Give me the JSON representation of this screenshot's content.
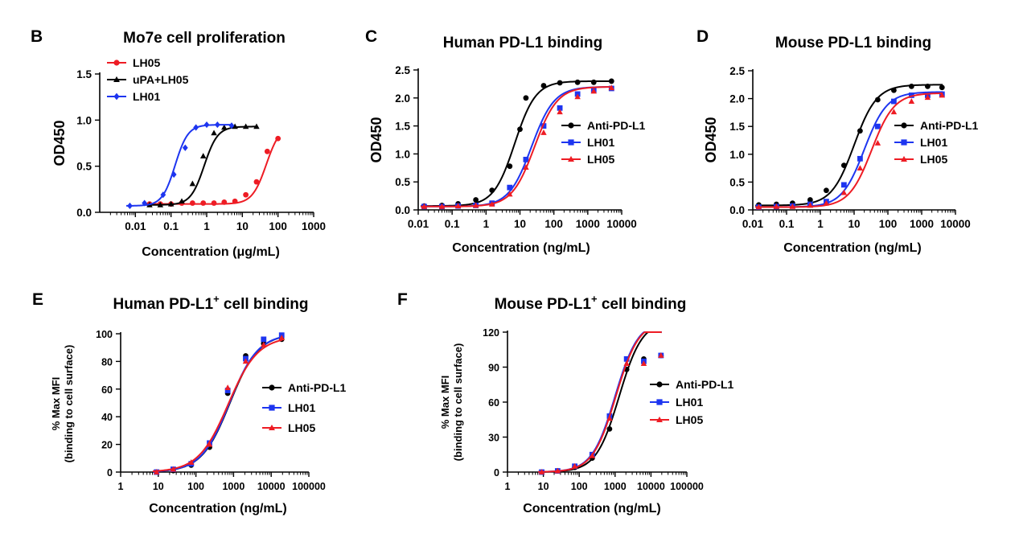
{
  "chart_data": [
    {
      "panel": "B",
      "type": "line",
      "title": "Mo7e cell proliferation",
      "xlabel": "Concentration (μg/mL)",
      "ylabel": "OD450",
      "xscale": "log",
      "xlim": [
        0.001,
        1000
      ],
      "ylim": [
        0,
        1.5
      ],
      "xticks": [
        "0.01",
        "0.1",
        "1",
        "10",
        "100",
        "1000"
      ],
      "yticks": [
        "0.0",
        "0.5",
        "1.0",
        "1.5"
      ],
      "legend_position": "top-left",
      "series": [
        {
          "name": "LH05",
          "color": "#ee1c24",
          "marker": "circle",
          "x": [
            0.025,
            0.05,
            0.1,
            0.2,
            0.4,
            0.8,
            1.6,
            3.1,
            6.2,
            12.5,
            25,
            50,
            100
          ],
          "y": [
            0.09,
            0.09,
            0.09,
            0.1,
            0.1,
            0.1,
            0.1,
            0.11,
            0.12,
            0.19,
            0.33,
            0.66,
            0.8
          ],
          "fit": {
            "bottom": 0.09,
            "top": 0.95,
            "ec50": 47,
            "hill": 2.2
          }
        },
        {
          "name": "uPA+LH05",
          "color": "#000000",
          "marker": "triangle",
          "x": [
            0.025,
            0.05,
            0.1,
            0.2,
            0.4,
            0.8,
            1.6,
            3.1,
            6.2,
            12.5,
            25
          ],
          "y": [
            0.08,
            0.08,
            0.09,
            0.12,
            0.31,
            0.61,
            0.86,
            0.92,
            0.93,
            0.93,
            0.93
          ],
          "fit": {
            "bottom": 0.08,
            "top": 0.93,
            "ec50": 0.85,
            "hill": 2.3
          }
        },
        {
          "name": "LH01",
          "color": "#1d35f0",
          "marker": "diamond",
          "x": [
            0.007,
            0.018,
            0.06,
            0.12,
            0.25,
            0.5,
            1.0,
            2.0,
            5.0
          ],
          "y": [
            0.07,
            0.1,
            0.19,
            0.41,
            0.7,
            0.92,
            0.95,
            0.95,
            0.94
          ],
          "fit": {
            "bottom": 0.07,
            "top": 0.95,
            "ec50": 0.13,
            "hill": 2.4
          }
        }
      ]
    },
    {
      "panel": "C",
      "type": "line",
      "title": "Human PD-L1 binding",
      "xlabel": "Concentration (ng/mL)",
      "ylabel": "OD450",
      "xscale": "log",
      "xlim": [
        0.01,
        10000
      ],
      "ylim": [
        0,
        2.5
      ],
      "xticks": [
        "0.01",
        "0.1",
        "1",
        "10",
        "100",
        "1000",
        "10000"
      ],
      "yticks": [
        "0.0",
        "0.5",
        "1.0",
        "1.5",
        "2.0",
        "2.5"
      ],
      "legend_position": "right",
      "series": [
        {
          "name": "Anti-PD-L1",
          "color": "#000000",
          "marker": "circle",
          "x": [
            0.015,
            0.05,
            0.15,
            0.5,
            1.5,
            5,
            10,
            15,
            50,
            150,
            500,
            1500,
            5000
          ],
          "y": [
            0.07,
            0.08,
            0.11,
            0.18,
            0.35,
            0.78,
            1.44,
            2.0,
            2.22,
            2.27,
            2.28,
            2.28,
            2.3
          ],
          "fit": {
            "bottom": 0.07,
            "top": 2.3,
            "ec50": 7,
            "hill": 1.4
          }
        },
        {
          "name": "LH01",
          "color": "#1d35f0",
          "marker": "square",
          "x": [
            0.015,
            0.05,
            0.15,
            0.5,
            1.5,
            5,
            15,
            50,
            150,
            500,
            1500,
            5000
          ],
          "y": [
            0.06,
            0.06,
            0.07,
            0.08,
            0.12,
            0.4,
            0.9,
            1.5,
            1.82,
            2.07,
            2.14,
            2.17
          ],
          "fit": {
            "bottom": 0.06,
            "top": 2.2,
            "ec50": 22,
            "hill": 1.3
          }
        },
        {
          "name": "LH05",
          "color": "#ee1c24",
          "marker": "triangle",
          "x": [
            0.015,
            0.05,
            0.15,
            0.5,
            1.5,
            5,
            15,
            50,
            150,
            500,
            1500,
            5000
          ],
          "y": [
            0.06,
            0.06,
            0.07,
            0.08,
            0.1,
            0.28,
            0.76,
            1.38,
            1.75,
            2.02,
            2.12,
            2.18
          ],
          "fit": {
            "bottom": 0.06,
            "top": 2.2,
            "ec50": 27,
            "hill": 1.3
          }
        }
      ]
    },
    {
      "panel": "D",
      "type": "line",
      "title": "Mouse PD-L1 binding",
      "xlabel": "Concentration (ng/mL)",
      "ylabel": "OD450",
      "xscale": "log",
      "xlim": [
        0.01,
        10000
      ],
      "ylim": [
        0,
        2.5
      ],
      "xticks": [
        "0.01",
        "0.1",
        "1",
        "10",
        "100",
        "1000",
        "10000"
      ],
      "yticks": [
        "0.0",
        "0.5",
        "1.0",
        "1.5",
        "2.0",
        "2.5"
      ],
      "legend_position": "right",
      "series": [
        {
          "name": "Anti-PD-L1",
          "color": "#000000",
          "marker": "circle",
          "x": [
            0.015,
            0.05,
            0.15,
            0.5,
            1.5,
            5,
            15,
            50,
            150,
            500,
            1500,
            4000
          ],
          "y": [
            0.09,
            0.1,
            0.12,
            0.18,
            0.35,
            0.8,
            1.42,
            1.98,
            2.15,
            2.22,
            2.22,
            2.2
          ],
          "fit": {
            "bottom": 0.08,
            "top": 2.25,
            "ec50": 10,
            "hill": 1.3
          }
        },
        {
          "name": "LH01",
          "color": "#1d35f0",
          "marker": "square",
          "x": [
            0.015,
            0.05,
            0.15,
            0.5,
            1.5,
            5,
            15,
            50,
            150,
            500,
            1500,
            4000
          ],
          "y": [
            0.05,
            0.06,
            0.07,
            0.1,
            0.15,
            0.45,
            0.92,
            1.5,
            1.95,
            2.06,
            2.06,
            2.08
          ],
          "fit": {
            "bottom": 0.05,
            "top": 2.12,
            "ec50": 20,
            "hill": 1.3
          }
        },
        {
          "name": "LH05",
          "color": "#ee1c24",
          "marker": "triangle",
          "x": [
            0.015,
            0.05,
            0.15,
            0.5,
            1.5,
            5,
            15,
            50,
            150,
            500,
            1500,
            4000
          ],
          "y": [
            0.05,
            0.06,
            0.06,
            0.08,
            0.12,
            0.31,
            0.75,
            1.2,
            1.76,
            1.95,
            2.02,
            2.06
          ],
          "fit": {
            "bottom": 0.05,
            "top": 2.1,
            "ec50": 33,
            "hill": 1.3
          }
        }
      ]
    },
    {
      "panel": "E",
      "type": "line",
      "title": "Human PD-L1",
      "title_sup": "+",
      "title_suffix": " cell binding",
      "xlabel": "Concentration (ng/mL)",
      "ylabel_lines": [
        "% Max MFI",
        "(binding to cell surface)"
      ],
      "xscale": "log",
      "xlim": [
        1,
        100000
      ],
      "ylim": [
        0,
        100
      ],
      "xticks": [
        "1",
        "10",
        "100",
        "1000",
        "10000",
        "100000"
      ],
      "yticks": [
        "0",
        "20",
        "40",
        "60",
        "80",
        "100"
      ],
      "legend_position": "right",
      "series": [
        {
          "name": "Anti-PD-L1",
          "color": "#000000",
          "marker": "circle",
          "x": [
            9,
            25,
            75,
            230,
            700,
            2100,
            6300,
            19000
          ],
          "y": [
            0,
            1,
            5,
            18,
            57,
            84,
            93,
            96
          ],
          "fit": {
            "bottom": 0,
            "top": 100,
            "ec50": 800,
            "hill": 1.15
          }
        },
        {
          "name": "LH01",
          "color": "#1d35f0",
          "marker": "square",
          "x": [
            9,
            25,
            75,
            230,
            700,
            2100,
            6300,
            19000
          ],
          "y": [
            0,
            2,
            6,
            21,
            59,
            82,
            96,
            99
          ],
          "fit": {
            "bottom": 0,
            "top": 100,
            "ec50": 780,
            "hill": 1.15
          }
        },
        {
          "name": "LH05",
          "color": "#ee1c24",
          "marker": "triangle",
          "x": [
            9,
            25,
            75,
            230,
            700,
            2100,
            6300,
            19000
          ],
          "y": [
            0,
            2,
            7,
            20,
            61,
            80,
            92,
            97
          ],
          "fit": {
            "bottom": 0,
            "top": 98,
            "ec50": 720,
            "hill": 1.1
          }
        }
      ]
    },
    {
      "panel": "F",
      "type": "line",
      "title": "Mouse PD-L1",
      "title_sup": "+",
      "title_suffix": " cell binding",
      "xlabel": "Concentration (ng/mL)",
      "ylabel_lines": [
        "% Max MFI",
        "(binding to cell surface)"
      ],
      "xscale": "log",
      "xlim": [
        1,
        100000
      ],
      "ylim": [
        0,
        120
      ],
      "xticks": [
        "1",
        "10",
        "100",
        "1000",
        "10000",
        "100000"
      ],
      "yticks": [
        "0",
        "30",
        "60",
        "90",
        "120"
      ],
      "legend_position": "right",
      "series": [
        {
          "name": "Anti-PD-L1",
          "color": "#000000",
          "marker": "circle",
          "x": [
            9,
            25,
            75,
            230,
            700,
            2100,
            6300,
            19000
          ],
          "y": [
            0,
            1,
            4,
            12,
            37,
            88,
            97,
            100
          ],
          "fit": {
            "bottom": 0,
            "top": 130,
            "ec50": 1300,
            "hill": 1.35,
            "fall": true
          }
        },
        {
          "name": "LH01",
          "color": "#1d35f0",
          "marker": "square",
          "x": [
            9,
            25,
            75,
            230,
            700,
            2100,
            6300,
            19000
          ],
          "y": [
            0,
            1,
            5,
            15,
            48,
            97,
            95,
            100
          ],
          "fit": {
            "bottom": 0,
            "top": 130,
            "ec50": 1000,
            "hill": 1.35,
            "fall": true
          }
        },
        {
          "name": "LH05",
          "color": "#ee1c24",
          "marker": "triangle",
          "x": [
            9,
            25,
            75,
            230,
            700,
            2100,
            6300,
            19000
          ],
          "y": [
            0,
            1,
            5,
            14,
            46,
            93,
            93,
            100
          ],
          "fit": {
            "bottom": 0,
            "top": 130,
            "ec50": 1050,
            "hill": 1.35,
            "fall": true
          }
        }
      ]
    }
  ],
  "panel_labels": [
    "B",
    "C",
    "D",
    "E",
    "F"
  ]
}
